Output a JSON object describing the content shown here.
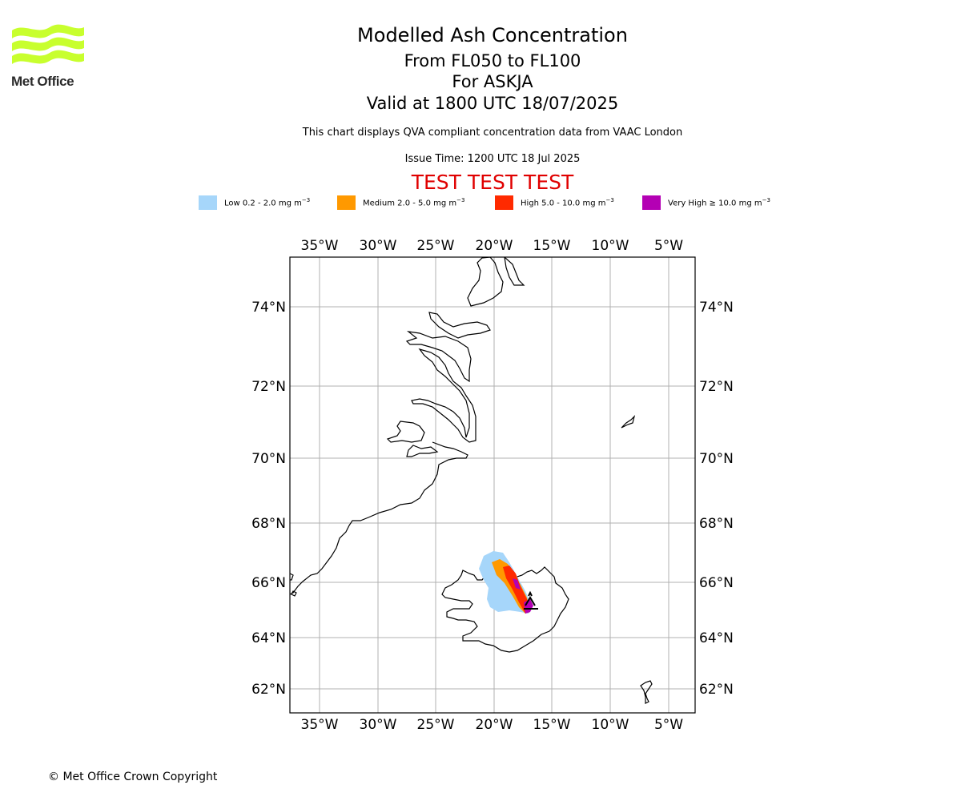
{
  "header": {
    "logo_text": "Met Office",
    "title_line1": "Modelled Ash Concentration",
    "title_line2": "From FL050 to FL100",
    "title_line3": "For ASKJA",
    "title_line4": "Valid at 1800 UTC 18/07/2025",
    "compliance_note": "This chart displays QVA compliant concentration data from VAAC London",
    "issue_time": "Issue Time: 1200 UTC 18 Jul 2025",
    "test_banner": "TEST TEST TEST"
  },
  "legend": [
    {
      "label": "Low 0.2 - 2.0 mg m",
      "exponent": "−3",
      "color": "#a6d6fa"
    },
    {
      "label": "Medium 2.0 - 5.0 mg m",
      "exponent": "−3",
      "color": "#ff9900"
    },
    {
      "label": "High 5.0 - 10.0 mg m",
      "exponent": "−3",
      "color": "#ff2a00"
    },
    {
      "label": "Very High  ≥  10.0 mg m",
      "exponent": "−3",
      "color": "#b400b4"
    }
  ],
  "map": {
    "lon_ticks": [
      "35°W",
      "30°W",
      "25°W",
      "20°W",
      "15°W",
      "10°W",
      "5°W"
    ],
    "lat_ticks": [
      "74°N",
      "72°N",
      "70°N",
      "68°N",
      "66°N",
      "64°N",
      "62°N"
    ],
    "volcano": "ASKJA"
  },
  "footer": {
    "copyright": "© Met Office Crown Copyright"
  }
}
